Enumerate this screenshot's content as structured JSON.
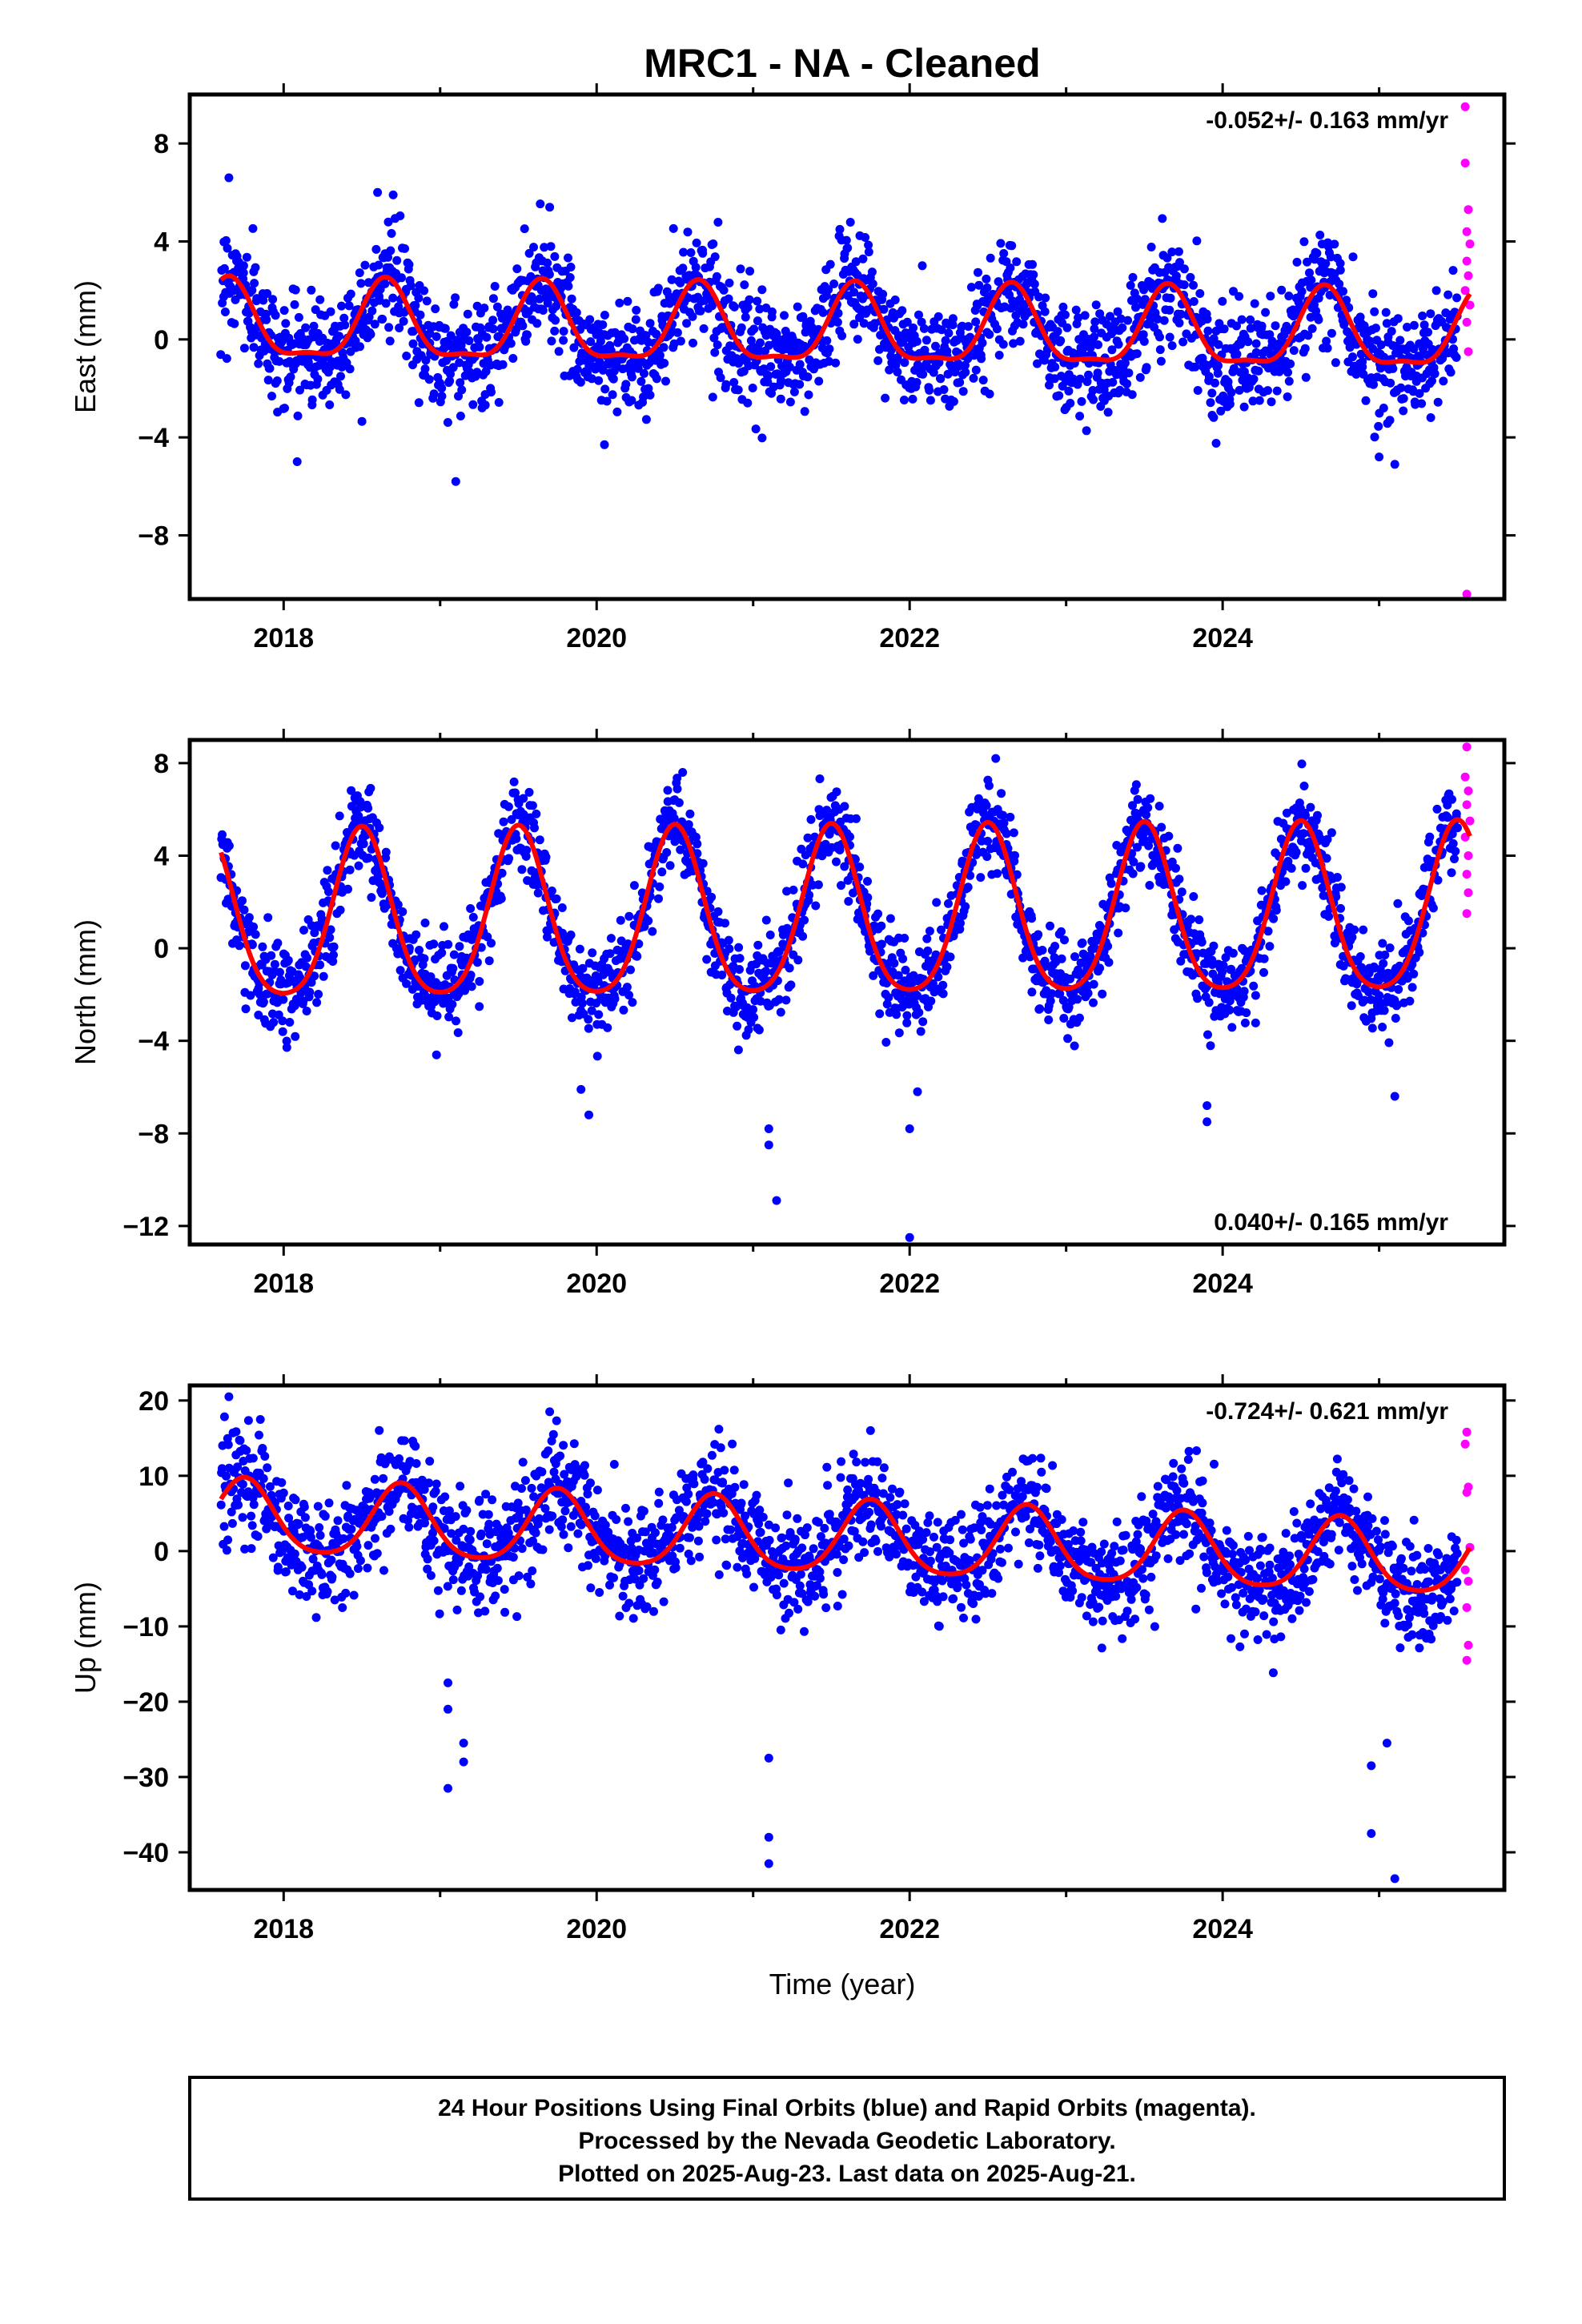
{
  "title": "MRC1  - NA - Cleaned",
  "xlabel": "Time (year)",
  "footer": {
    "line1": "24 Hour Positions Using Final Orbits (blue) and Rapid Orbits (magenta).",
    "line2": "Processed by the Nevada Geodetic Laboratory.",
    "line3": "Plotted on 2025-Aug-23. Last data on 2025-Aug-21."
  },
  "colors": {
    "final": "#0000ff",
    "rapid": "#ff00ff",
    "model": "#ff0000"
  },
  "chart_data": [
    {
      "type": "scatter",
      "ylabel": "East (mm)",
      "rate_label": "-0.052+/- 0.163 mm/yr",
      "rate_position": "top-right",
      "xlim": [
        2017.4,
        2025.8
      ],
      "ylim": [
        -10.6,
        10.0
      ],
      "xticks": [
        2018,
        2020,
        2022,
        2024
      ],
      "yticks": [
        8,
        4,
        0,
        -4,
        -8
      ],
      "x_start": 2017.6,
      "x_end": 2025.5,
      "model": {
        "offset": 0.35,
        "trend": -0.052,
        "annual": 1.55,
        "phase_peak": 0.65,
        "semiannual": 0.5,
        "noise_sd": 1.1
      },
      "outliers_final": [
        [
          2017.65,
          6.6
        ],
        [
          2018.6,
          6.0
        ],
        [
          2018.7,
          5.9
        ],
        [
          2019.1,
          -5.8
        ],
        [
          2019.7,
          5.4
        ],
        [
          2020.05,
          -4.3
        ],
        [
          2025.1,
          -5.1
        ],
        [
          2025.0,
          -4.8
        ]
      ],
      "rapid_points": [
        [
          2025.55,
          9.5
        ],
        [
          2025.55,
          7.2
        ],
        [
          2025.57,
          5.3
        ],
        [
          2025.56,
          4.4
        ],
        [
          2025.58,
          3.9
        ],
        [
          2025.56,
          3.2
        ],
        [
          2025.57,
          2.6
        ],
        [
          2025.55,
          2.0
        ],
        [
          2025.58,
          1.4
        ],
        [
          2025.56,
          0.7
        ],
        [
          2025.57,
          -0.5
        ],
        [
          2025.56,
          -10.4
        ]
      ]
    },
    {
      "type": "scatter",
      "ylabel": "North (mm)",
      "rate_label": "0.040+/- 0.165 mm/yr",
      "rate_position": "bottom-right",
      "xlim": [
        2017.4,
        2025.8
      ],
      "ylim": [
        -12.8,
        9.0
      ],
      "xticks": [
        2018,
        2020,
        2022,
        2024
      ],
      "yticks": [
        8,
        4,
        0,
        -4,
        -8,
        -12
      ],
      "x_start": 2017.6,
      "x_end": 2025.5,
      "model": {
        "offset": 1.2,
        "trend": 0.04,
        "annual": 3.6,
        "phase_peak": 0.5,
        "semiannual": 0.6,
        "noise_sd": 1.0
      },
      "outliers_final": [
        [
          2021.1,
          -7.8
        ],
        [
          2021.1,
          -8.5
        ],
        [
          2021.15,
          -10.9
        ],
        [
          2022.0,
          -7.8
        ],
        [
          2022.05,
          -6.2
        ],
        [
          2022.0,
          -12.5
        ],
        [
          2023.9,
          -7.5
        ],
        [
          2023.9,
          -6.8
        ],
        [
          2019.95,
          -7.2
        ],
        [
          2019.9,
          -6.1
        ],
        [
          2025.1,
          -6.4
        ],
        [
          2022.55,
          8.2
        ],
        [
          2020.55,
          7.6
        ]
      ],
      "rapid_points": [
        [
          2025.56,
          8.7
        ],
        [
          2025.55,
          7.4
        ],
        [
          2025.57,
          6.8
        ],
        [
          2025.56,
          6.2
        ],
        [
          2025.58,
          5.5
        ],
        [
          2025.55,
          4.8
        ],
        [
          2025.57,
          4.0
        ],
        [
          2025.56,
          3.2
        ],
        [
          2025.57,
          2.4
        ],
        [
          2025.56,
          1.5
        ]
      ]
    },
    {
      "type": "scatter",
      "ylabel": "Up (mm)",
      "rate_label": "-0.724+/- 0.621 mm/yr",
      "rate_position": "top-right",
      "xlim": [
        2017.4,
        2025.8
      ],
      "ylim": [
        -45.0,
        22.0
      ],
      "xticks": [
        2018,
        2020,
        2022,
        2024
      ],
      "yticks": [
        20,
        10,
        0,
        -10,
        -20,
        -30,
        -40
      ],
      "x_start": 2017.6,
      "x_end": 2025.5,
      "model": {
        "offset": 1.5,
        "trend": -0.724,
        "annual": 4.8,
        "phase_peak": 0.75,
        "semiannual": 0.8,
        "noise_sd": 3.6
      },
      "outliers_final": [
        [
          2017.65,
          20.5
        ],
        [
          2019.05,
          -17.5
        ],
        [
          2019.05,
          -21.0
        ],
        [
          2019.05,
          -31.5
        ],
        [
          2019.15,
          -25.5
        ],
        [
          2019.15,
          -28.0
        ],
        [
          2021.1,
          -27.5
        ],
        [
          2021.1,
          -38.0
        ],
        [
          2021.1,
          -41.5
        ],
        [
          2024.95,
          -28.5
        ],
        [
          2024.95,
          -37.5
        ],
        [
          2025.05,
          -25.5
        ],
        [
          2025.1,
          -43.5
        ],
        [
          2019.7,
          18.5
        ],
        [
          2021.75,
          16.0
        ]
      ],
      "rapid_points": [
        [
          2025.56,
          15.8
        ],
        [
          2025.55,
          14.2
        ],
        [
          2025.57,
          8.5
        ],
        [
          2025.56,
          7.8
        ],
        [
          2025.58,
          0.5
        ],
        [
          2025.55,
          -2.5
        ],
        [
          2025.57,
          -4.0
        ],
        [
          2025.56,
          -7.5
        ],
        [
          2025.57,
          -12.5
        ],
        [
          2025.56,
          -14.5
        ]
      ]
    }
  ]
}
